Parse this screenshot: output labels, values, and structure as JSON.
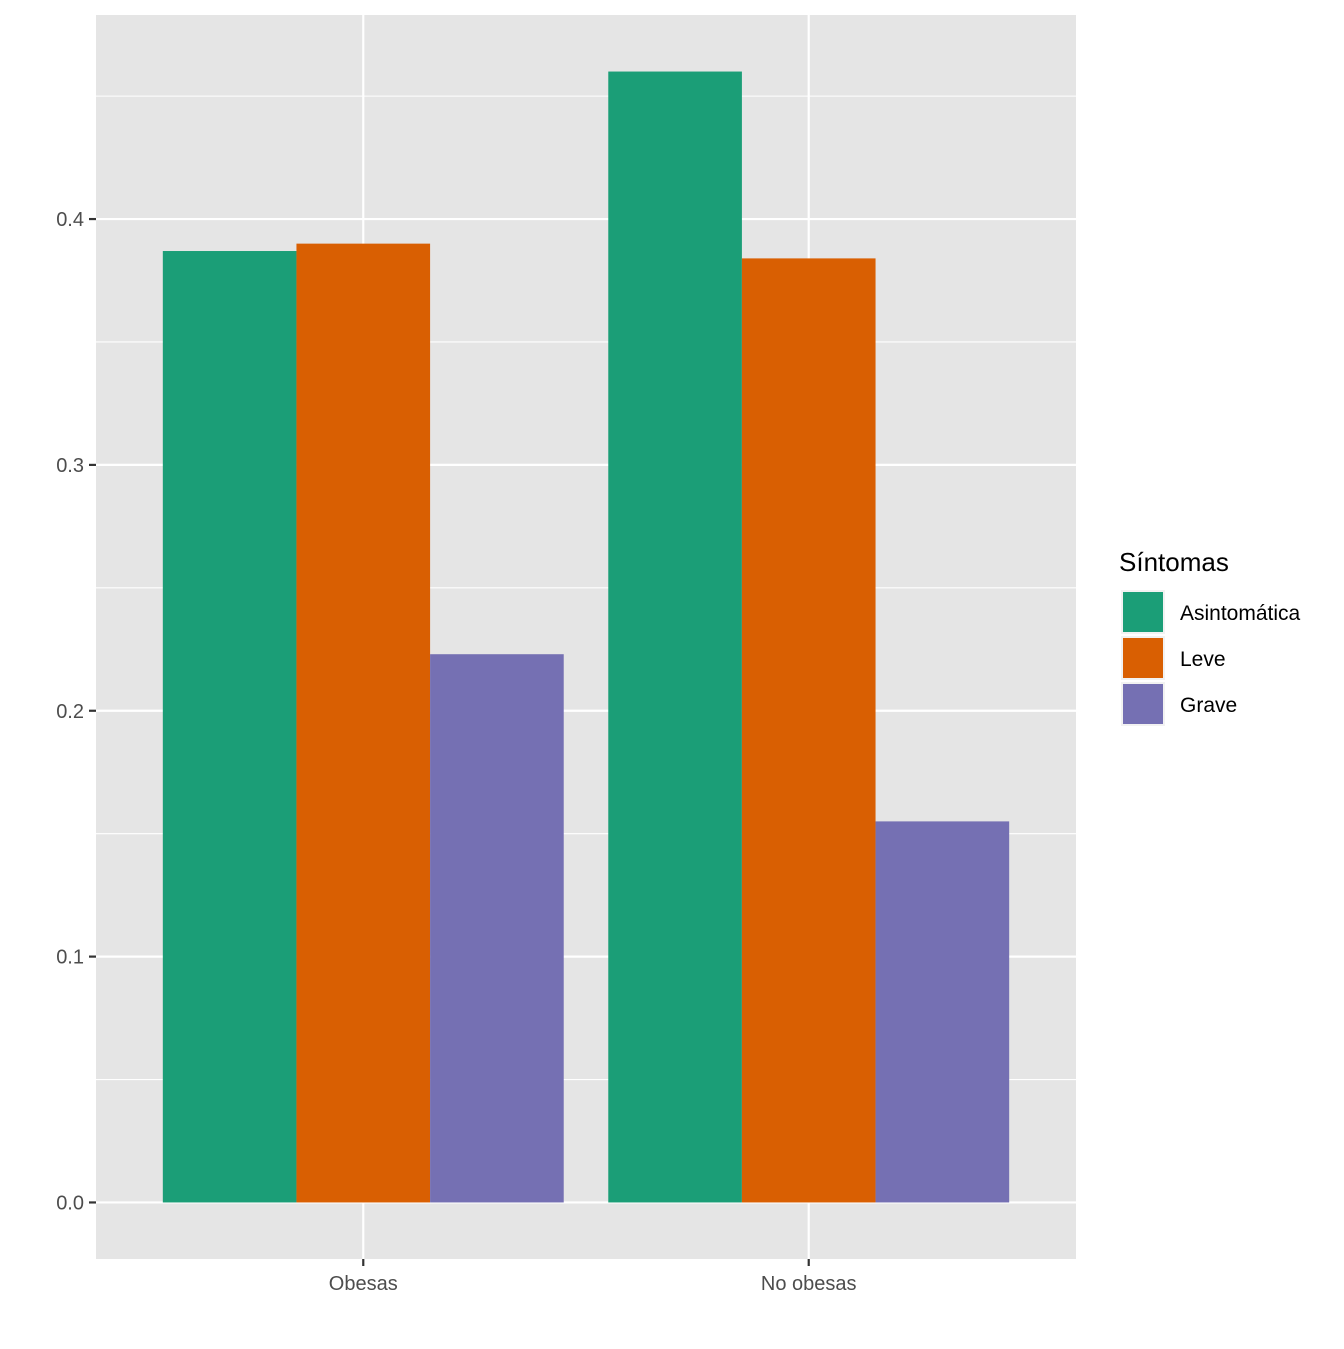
{
  "chart_data": {
    "type": "bar",
    "categories": [
      "Obesas",
      "No obesas"
    ],
    "series": [
      {
        "name": "Asintomática",
        "values": [
          0.387,
          0.46
        ],
        "color": "#1B9E77"
      },
      {
        "name": "Leve",
        "values": [
          0.39,
          0.384
        ],
        "color": "#D95F02"
      },
      {
        "name": "Grave",
        "values": [
          0.223,
          0.155
        ],
        "color": "#7570B3"
      }
    ],
    "title": "",
    "xlabel": "",
    "ylabel": "",
    "ylim": [
      -0.023,
      0.483
    ],
    "yticks": [
      0.0,
      0.1,
      0.2,
      0.3,
      0.4
    ],
    "ytick_labels": [
      "0.0",
      "0.1",
      "0.2",
      "0.3",
      "0.4"
    ],
    "grid": true,
    "panel_background": "#E5E5E5",
    "legend": {
      "title": "Síntomas",
      "position": "right"
    }
  }
}
